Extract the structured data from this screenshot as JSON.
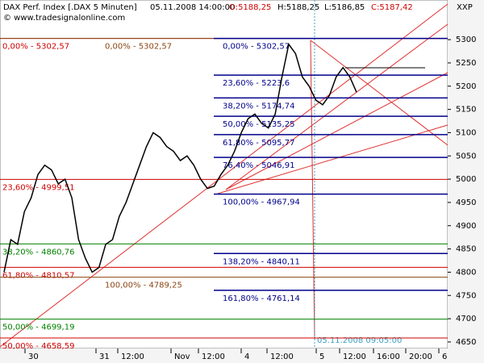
{
  "chart_data": {
    "type": "line",
    "watermark": "© www.tradesignalonline.com",
    "symbol_code": "XXP",
    "timestamp": "05.11.2008 14:00:00",
    "ohlc": [
      {
        "text": "O:5188,25",
        "color": "#d00000"
      },
      {
        "text": "H:5188,25",
        "color": "#000000"
      },
      {
        "text": "L:5186,85",
        "color": "#000000"
      },
      {
        "text": "C:5187,42",
        "color": "#d00000"
      }
    ],
    "cursor_label": "05.11.2008 09:05:00",
    "series": [
      {
        "name": "DAX Perf. Index [.DAX 5 Minuten]",
        "color": "#000000",
        "values": [
          4800,
          4870,
          4860,
          4930,
          4960,
          5010,
          5030,
          5020,
          4990,
          5000,
          4960,
          4870,
          4830,
          4800,
          4810,
          4860,
          4870,
          4920,
          4950,
          4990,
          5030,
          5070,
          5100,
          5090,
          5070,
          5060,
          5040,
          5050,
          5030,
          5000,
          4980,
          4985,
          5010,
          5030,
          5060,
          5100,
          5130,
          5140,
          5120,
          5110,
          5140,
          5220,
          5290,
          5270,
          5220,
          5200,
          5170,
          5160,
          5180,
          5220,
          5240,
          5220,
          5187
        ]
      }
    ],
    "levels_left": [
      {
        "label": "0,00% - 5302,57",
        "value": 5302.57,
        "color": "#d00000"
      },
      {
        "label": "0,00% - 5302,57",
        "value": 5302.57,
        "color": "#8b4513"
      },
      {
        "label": "23,60% - 4999,51",
        "value": 4999.51,
        "color": "#d00000"
      },
      {
        "label": "38,20% - 4860,76",
        "value": 4860.76,
        "color": "#008000"
      },
      {
        "label": "61,80% - 4810,57",
        "value": 4810.57,
        "color": "#d00000"
      },
      {
        "label": "100,00% - 4789,25",
        "value": 4789.25,
        "color": "#8b4513"
      },
      {
        "label": "50,00% - 4699,19",
        "value": 4699.19,
        "color": "#008000"
      },
      {
        "label": "50,00% - 4658,59",
        "value": 4658.59,
        "color": "#d00000"
      }
    ],
    "levels_right": [
      {
        "label": "0,00% - 5302,57",
        "value": 5302.57
      },
      {
        "label": "23,60% - 5223,6",
        "value": 5223.6
      },
      {
        "label": "38,20% - 5174,74",
        "value": 5174.74
      },
      {
        "label": "50,00% - 5135,25",
        "value": 5135.25
      },
      {
        "label": "61,80% - 5095,77",
        "value": 5095.77
      },
      {
        "label": "76,40% - 5046,91",
        "value": 5046.91
      },
      {
        "label": "100,00% - 4967,94",
        "value": 4967.94
      },
      {
        "label": "138,20% - 4840,11",
        "value": 4840.11
      },
      {
        "label": "161,80% - 4761,14",
        "value": 4761.14
      }
    ],
    "right_color": "#00008b",
    "xlabels": [
      "30",
      "31",
      "12:00",
      "Nov",
      "12:00",
      "4",
      "12:00",
      "5",
      "12:00",
      "16:00",
      "20:00",
      "6"
    ],
    "ylim": [
      4636,
      5380
    ],
    "yticks": [
      4650,
      4700,
      4750,
      4800,
      4850,
      4900,
      4950,
      5000,
      5050,
      5100,
      5150,
      5200,
      5250,
      5300
    ]
  }
}
